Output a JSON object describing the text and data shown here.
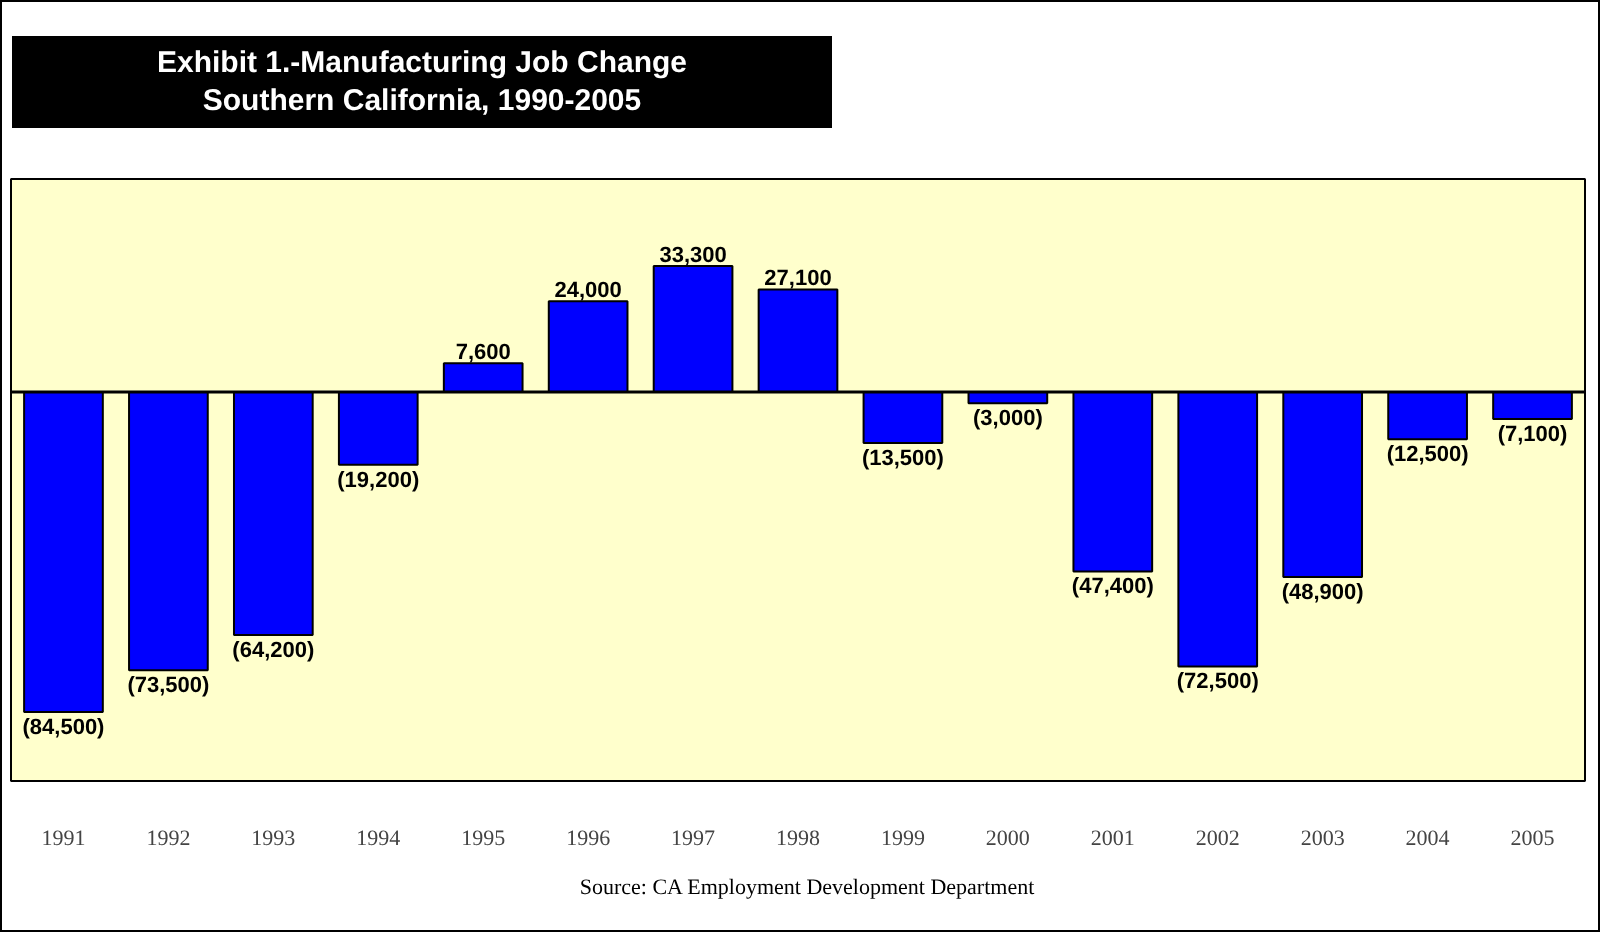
{
  "chart_data": {
    "type": "bar",
    "title": "Exhibit 1.-Manufacturing Job Change\nSouthern California, 1990-2005",
    "categories": [
      "1991",
      "1992",
      "1993",
      "1994",
      "1995",
      "1996",
      "1997",
      "1998",
      "1999",
      "2000",
      "2001",
      "2002",
      "2003",
      "2004",
      "2005"
    ],
    "values": [
      -84500,
      -73500,
      -64200,
      -19200,
      7600,
      24000,
      33300,
      27100,
      -13500,
      -3000,
      -47400,
      -72500,
      -48900,
      -12500,
      -7100
    ],
    "value_labels": [
      "(84,500)",
      "(73,500)",
      "(64,200)",
      "(19,200)",
      "7,600",
      "24,000",
      "33,300",
      "27,100",
      "(13,500)",
      "(3,000)",
      "(47,400)",
      "(72,500)",
      "(48,900)",
      "(12,500)",
      "(7,100)"
    ],
    "color": "#0000ff",
    "annotations": [
      "Source: CA  Employment Development Department"
    ]
  }
}
